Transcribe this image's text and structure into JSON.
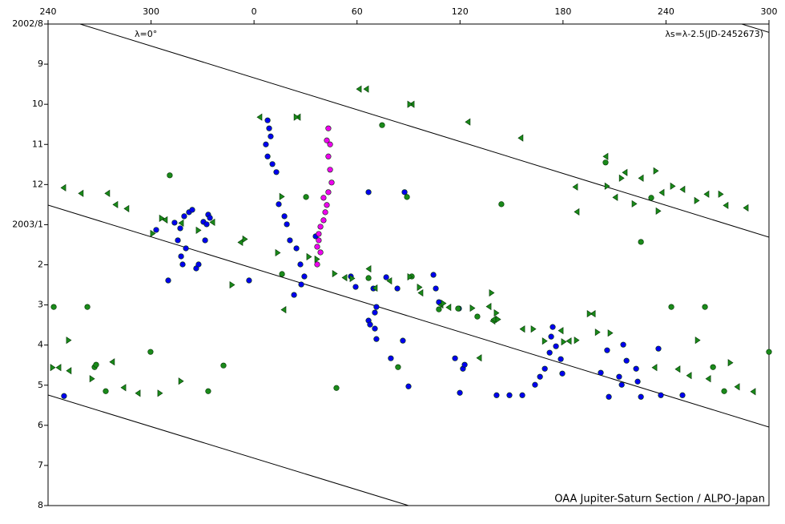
{
  "chart_data": {
    "type": "scatter",
    "annotations": [
      "λ=0°",
      "λs=λ-2.5(JD-2452673)",
      "OAA Jupiter-Saturn Section / ALPO-Japan"
    ],
    "xlim": [
      240,
      660
    ],
    "ylim": [
      0,
      12
    ],
    "y_inverted": true,
    "xticks": [
      240,
      300,
      {
        "value": 360,
        "label": "0"
      },
      {
        "value": 420,
        "label": "60"
      },
      {
        "value": 480,
        "label": "120"
      },
      {
        "value": 540,
        "label": "180"
      },
      {
        "value": 600,
        "label": "240"
      },
      {
        "value": 660,
        "label": "300"
      }
    ],
    "yticks": [
      {
        "value": 0,
        "label": "2002/8"
      },
      {
        "value": 1,
        "label": "9"
      },
      {
        "value": 2,
        "label": "10"
      },
      {
        "value": 3,
        "label": "11"
      },
      {
        "value": 4,
        "label": "12"
      },
      {
        "value": 5,
        "label": "2003/1"
      },
      {
        "value": 6,
        "label": "2"
      },
      {
        "value": 7,
        "label": "3"
      },
      {
        "value": 8,
        "label": "4"
      },
      {
        "value": 9,
        "label": "5"
      },
      {
        "value": 10,
        "label": "6"
      },
      {
        "value": 11,
        "label": "7"
      },
      {
        "value": 12,
        "label": "8"
      }
    ],
    "series": [
      {
        "marker": "circle",
        "color": "#0000ee",
        "x": [
          249.3,
          303,
          310,
          313.7,
          315.6,
          317,
          317.5,
          318.4,
          319.3,
          320.3,
          322.1,
          324,
          326.3,
          327.7,
          330.5,
          331.5,
          332.4,
          333.3,
          334.3,
          357.1,
          367.9,
          368.8,
          369.7,
          366.9,
          367.9,
          370.7,
          373,
          374.4,
          377.7,
          379.1,
          380.9,
          384.7,
          387,
          387.5,
          383.3,
          389.3,
          395.9,
          426.7,
          447.7,
          416.4,
          419.2,
          429.5,
          430.4,
          431.3,
          426.7,
          427.6,
          430.4,
          431.3,
          437,
          443.5,
          439.7,
          446.7,
          450,
          464.5,
          465.9,
          467.7,
          479.4,
          477.1,
          481.7,
          482.7,
          479.9,
          501.3,
          508.8,
          516.3,
          523.7,
          526.6,
          529.4,
          532.2,
          533.1,
          534,
          535.9,
          538.7,
          539.6,
          562,
          565.7,
          566.7,
          572.7,
          574.2,
          575.1,
          577,
          582.6,
          583.5,
          585.4,
          595.6,
          597,
          609.6
        ],
        "y": [
          9.27,
          5.13,
          6.39,
          4.95,
          5.39,
          5.09,
          5.79,
          5.99,
          4.79,
          5.59,
          4.69,
          4.63,
          6.09,
          5.99,
          4.93,
          5.39,
          4.99,
          4.75,
          4.83,
          6.39,
          2.4,
          2.6,
          2.8,
          3,
          3.3,
          3.49,
          3.69,
          4.49,
          4.79,
          4.99,
          5.39,
          5.59,
          5.99,
          6.49,
          6.75,
          6.29,
          5.29,
          4.19,
          4.19,
          6.29,
          6.55,
          6.59,
          7.19,
          7.05,
          7.39,
          7.49,
          7.59,
          7.85,
          6.31,
          6.59,
          8.33,
          7.89,
          9.03,
          6.25,
          6.59,
          6.93,
          7.09,
          8.33,
          8.59,
          8.49,
          9.19,
          9.25,
          9.25,
          9.25,
          8.99,
          8.79,
          8.59,
          8.19,
          7.79,
          7.55,
          8.03,
          8.35,
          8.71,
          8.69,
          8.13,
          9.29,
          8.79,
          8.99,
          7.99,
          8.39,
          8.59,
          8.91,
          9.29,
          8.09,
          9.25,
          9.25
        ]
      },
      {
        "marker": "circle",
        "color": "#ee00ee",
        "x": [
          403.3,
          402.4,
          404.3,
          403.3,
          404.3,
          405.2,
          403.3,
          400.5,
          402.4,
          401.5,
          400.5,
          398.7,
          397.7,
          397.7,
          396.8,
          398.7,
          396.8
        ],
        "y": [
          2.6,
          2.9,
          3,
          3.3,
          3.63,
          3.95,
          4.19,
          4.33,
          4.51,
          4.69,
          4.89,
          5.05,
          5.23,
          5.39,
          5.55,
          5.69,
          5.99
        ]
      },
      {
        "marker": "circle",
        "color": "#1a8a1a",
        "x": [
          243.3,
          262.9,
          310.9,
          299.7,
          273.6,
          267.1,
          268,
          333.3,
          342.2,
          390.3,
          376.3,
          408,
          434.6,
          449.1,
          504.1,
          443.9,
          467.7,
          478.9,
          490.1,
          564.8,
          585.4,
          591.4,
          603.1,
          622.7,
          627.4,
          633.9,
          660,
          426.7,
          451.9
        ],
        "y": [
          7.05,
          7.05,
          3.77,
          8.17,
          9.15,
          8.55,
          8.49,
          9.15,
          8.51,
          4.31,
          6.23,
          9.07,
          2.52,
          4.31,
          4.49,
          8.55,
          7.11,
          7.09,
          7.29,
          3.45,
          5.43,
          4.33,
          7.05,
          7.05,
          8.55,
          9.15,
          8.17,
          6.33,
          6.29
        ]
      },
      {
        "marker": "triangle-left",
        "color": "#1a8a1a",
        "x": [
          248.9,
          259.1,
          274.5,
          279.2,
          285.7,
          308.1,
          317.5,
          335.7,
          352,
          363.2,
          377.2,
          385.6,
          421.1,
          425.3,
          451.9,
          484.5,
          515.3,
          547.1,
          548,
          564.8,
          570.4,
          576,
          585.4,
          597.5,
          609.6,
          623.6,
          634.8,
          646.5,
          246.1,
          252.1,
          277.3,
          283.9,
          292.3,
          430.4,
          438.8,
          468.7,
          496.7,
          499,
          516.3,
          538.7,
          543.4,
          557.4,
          593.3,
          606.8,
          613.4,
          624.6,
          641.4,
          650.7,
          412.7,
          426.7,
          457,
          473.3,
          491.1,
          499.5
        ],
        "y": [
          4.08,
          4.22,
          4.22,
          4.5,
          4.6,
          4.88,
          4.96,
          4.94,
          5.44,
          2.32,
          7.12,
          2.32,
          1.62,
          1.62,
          2,
          2.44,
          2.84,
          4.06,
          4.68,
          3.3,
          4.32,
          3.7,
          3.84,
          4.2,
          4.12,
          4.24,
          4.52,
          4.58,
          8.56,
          8.64,
          8.42,
          9.06,
          9.2,
          6.58,
          6.4,
          7,
          7.04,
          7.4,
          7.6,
          7.64,
          7.9,
          7.22,
          8.56,
          8.6,
          8.76,
          8.84,
          9.04,
          9.16,
          6.32,
          6.1,
          6.7,
          7.06,
          8.32,
          7.36
        ]
      },
      {
        "marker": "triangle-right",
        "color": "#1a8a1a",
        "x": [
          252.1,
          242.8,
          265.7,
          306.3,
          301.1,
          354.8,
          373.9,
          384.7,
          376.3,
          396.8,
          407.1,
          450.9,
          498.5,
          502.3,
          522.8,
          529.4,
          540.5,
          548,
          555.5,
          560.2,
          567.6,
          565.8,
          574.2,
          594.2,
          581.6,
          595.6,
          604,
          618,
          632,
          618.5,
          637.6,
          305.3,
          317.5,
          327.7,
          347.3,
          392.1,
          417.3,
          450.9,
          456.5,
          470.5,
          487.3,
          501.3
        ],
        "y": [
          7.88,
          8.56,
          8.84,
          4.84,
          5.22,
          5.36,
          5.7,
          2.32,
          4.3,
          5.86,
          6.22,
          2,
          6.7,
          7.36,
          7.6,
          7.9,
          7.92,
          7.88,
          7.22,
          7.68,
          7.7,
          4.04,
          3.84,
          3.66,
          4.48,
          4.66,
          4.04,
          4.4,
          4.24,
          7.88,
          8.44,
          9.2,
          8.9,
          5.14,
          6.5,
          5.8,
          6.34,
          6.3,
          6.56,
          6.96,
          7.08,
          7.2
        ]
      }
    ]
  }
}
